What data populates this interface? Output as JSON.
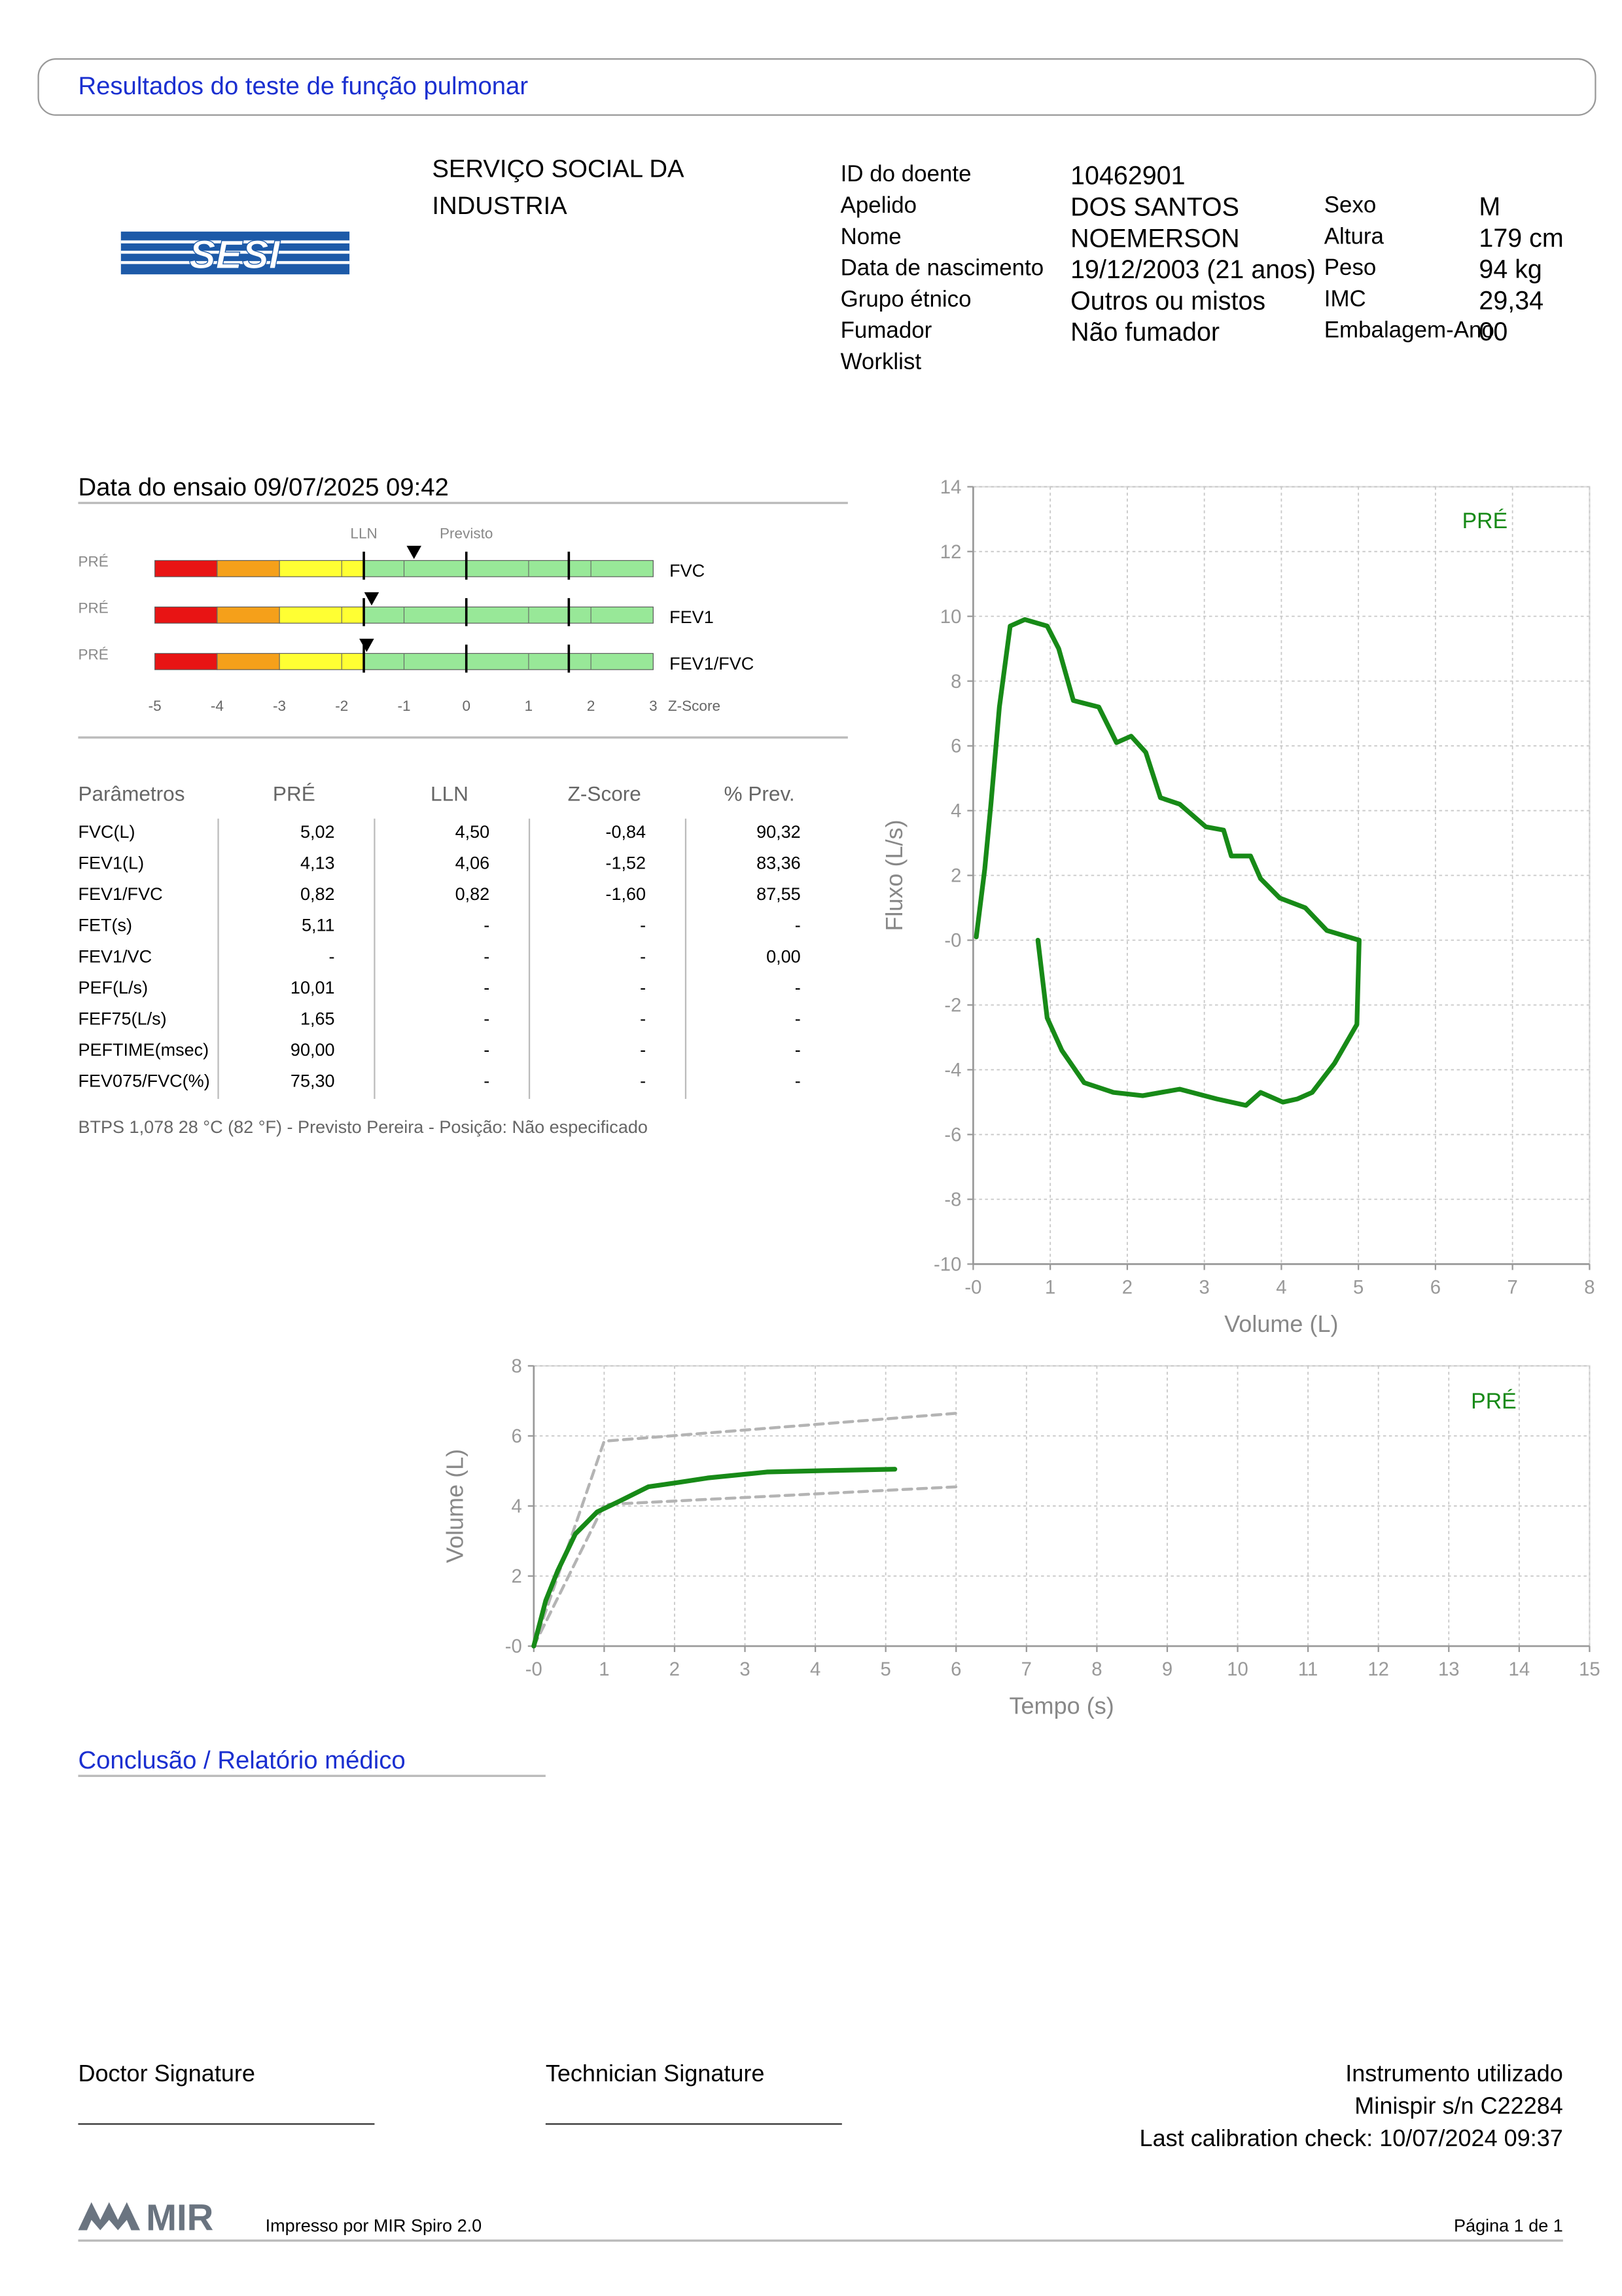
{
  "header": {
    "title": "Resultados do teste de função pulmonar"
  },
  "logo": {
    "text": "SESI"
  },
  "organization": {
    "lines": [
      "SERVIÇO SOCIAL DA",
      "INDUSTRIA"
    ]
  },
  "patient": {
    "left": [
      {
        "label": "ID do doente",
        "value": "10462901"
      },
      {
        "label": "Apelido",
        "value": "DOS SANTOS"
      },
      {
        "label": "Nome",
        "value": "NOEMERSON"
      },
      {
        "label": "Data de nascimento",
        "value": "19/12/2003 (21 anos)"
      },
      {
        "label": "Grupo étnico",
        "value": "Outros ou mistos"
      },
      {
        "label": "Fumador",
        "value": "Não fumador"
      },
      {
        "label": "Worklist"
      }
    ],
    "right": [
      {
        "label": "Sexo",
        "value": "M"
      },
      {
        "label": "Altura",
        "value": "179 cm"
      },
      {
        "label": "Peso",
        "value": "94 kg"
      },
      {
        "label": "IMC",
        "value": "29,34"
      },
      {
        "label": "Embalagem-Ano",
        "value": "00"
      }
    ]
  },
  "test_date": "Data do ensaio 09/07/2025 09:42",
  "zscore_chart": {
    "reference_lines": [
      {
        "value": -1.645,
        "label": "LLN"
      },
      {
        "value": 0,
        "label": "Previsto"
      },
      {
        "value": 1.645
      }
    ],
    "zones": [
      {
        "from": -5,
        "to": -4,
        "color": "#e81414"
      },
      {
        "from": -4,
        "to": -3,
        "color": "#f5a01a"
      },
      {
        "from": -3,
        "to": -1.645,
        "color": "#ffff33"
      },
      {
        "from": -1.645,
        "to": 3,
        "color": "#98e898"
      }
    ],
    "rows": [
      {
        "phase": "PRÉ",
        "name": "FVC",
        "value": -0.84
      },
      {
        "phase": "PRÉ",
        "name": "FEV1",
        "value": -1.52
      },
      {
        "phase": "PRÉ",
        "name": "FEV1/FVC",
        "value": -1.6
      }
    ],
    "xlim": [
      -5,
      3
    ],
    "xticks": [
      -5,
      -4,
      -3,
      -2,
      -1,
      0,
      1,
      2,
      3
    ],
    "axis_label": "Z-Score"
  },
  "table": {
    "columns": [
      "Parâmetros",
      "PRÉ",
      "LLN",
      "Z-Score",
      "% Prev."
    ],
    "rows": [
      [
        "FVC(L)",
        "5,02",
        "4,50",
        "-0,84",
        "90,32"
      ],
      [
        "FEV1(L)",
        "4,13",
        "4,06",
        "-1,52",
        "83,36"
      ],
      [
        "FEV1/FVC",
        "0,82",
        "0,82",
        "-1,60",
        "87,55"
      ],
      [
        "FET(s)",
        "5,11",
        "-",
        "-",
        "-"
      ],
      [
        "FEV1/VC",
        "-",
        "-",
        "-",
        "0,00"
      ],
      [
        "PEF(L/s)",
        "10,01",
        "-",
        "-",
        "-"
      ],
      [
        "FEF75(L/s)",
        "1,65",
        "-",
        "-",
        "-"
      ],
      [
        "PEFTIME(msec)",
        "90,00",
        "-",
        "-",
        "-"
      ],
      [
        "FEV075/FVC(%)",
        "75,30",
        "-",
        "-",
        "-"
      ]
    ],
    "note": "BTPS 1,078 28 °C (82 °F) - Previsto Pereira - Posição: Não especificado"
  },
  "chart_data": [
    {
      "type": "line",
      "xlabel": "Volume (L)",
      "ylabel": "Fluxo (L/s)",
      "xlim": [
        0,
        8
      ],
      "ylim": [
        -10,
        14
      ],
      "xticks": [
        {
          "value": 0,
          "label": "-0"
        },
        1,
        2,
        3,
        4,
        5,
        6,
        7,
        8
      ],
      "yticks": [
        -10,
        -8,
        -6,
        -4,
        -2,
        {
          "value": 0,
          "label": "-0"
        },
        2,
        4,
        6,
        8,
        10,
        12,
        14
      ],
      "grid": true,
      "series": [
        {
          "name": "PRÉ",
          "color": "#178a17",
          "x": [
            0.04,
            0.15,
            0.23,
            0.34,
            0.48,
            0.67,
            0.96,
            1.11,
            1.3,
            1.63,
            1.86,
            2.05,
            2.24,
            2.43,
            2.68,
            3.02,
            3.25,
            3.35,
            3.6,
            3.73,
            3.98,
            4.31,
            4.59,
            5.01,
            4.98,
            4.69,
            4.4,
            4.21,
            4.02,
            3.73,
            3.54,
            3.16,
            2.68,
            2.2,
            1.82,
            1.44,
            1.15,
            0.96,
            0.84
          ],
          "values": [
            0.1,
            2.2,
            4.2,
            7.2,
            9.7,
            9.9,
            9.7,
            9.0,
            7.4,
            7.2,
            6.1,
            6.3,
            5.8,
            4.4,
            4.2,
            3.5,
            3.4,
            2.6,
            2.6,
            1.9,
            1.3,
            1.0,
            0.3,
            0.0,
            -2.6,
            -3.8,
            -4.7,
            -4.9,
            -5.0,
            -4.7,
            -5.1,
            -4.9,
            -4.6,
            -4.8,
            -4.7,
            -4.4,
            -3.4,
            -2.4,
            0.0
          ]
        }
      ]
    },
    {
      "type": "line",
      "xlabel": "Tempo (s)",
      "ylabel": "Volume (L)",
      "xlim": [
        0,
        15
      ],
      "ylim": [
        0,
        8
      ],
      "xticks": [
        {
          "value": 0,
          "label": "-0"
        },
        1,
        2,
        3,
        4,
        5,
        6,
        7,
        8,
        9,
        10,
        11,
        12,
        13,
        14,
        15
      ],
      "yticks": [
        {
          "value": 0,
          "label": "-0"
        },
        2,
        4,
        6,
        8
      ],
      "grid": true,
      "series": [
        {
          "color": "#b4b4b4",
          "dashed": true,
          "x": [
            0,
            1.0,
            6.03
          ],
          "values": [
            0,
            5.85,
            6.65
          ]
        },
        {
          "color": "#b4b4b4",
          "dashed": true,
          "x": [
            0,
            1.0,
            6.03
          ],
          "values": [
            0,
            4.04,
            4.55
          ]
        },
        {
          "name": "PRÉ",
          "color": "#178a17",
          "x": [
            0,
            0.17,
            0.34,
            0.59,
            0.9,
            1.21,
            1.63,
            2.05,
            2.47,
            3.31,
            4.15,
            5.13
          ],
          "values": [
            0,
            1.3,
            2.15,
            3.2,
            3.83,
            4.13,
            4.55,
            4.67,
            4.8,
            4.97,
            5.01,
            5.05
          ]
        }
      ]
    }
  ],
  "conclusion": {
    "title": "Conclusão / Relatório médico"
  },
  "signatures": {
    "doctor": "Doctor Signature",
    "technician": "Technician Signature"
  },
  "instrument": {
    "lines": [
      "Instrumento utilizado",
      "Minispir s/n C22284",
      "Last calibration check: 10/07/2024 09:37"
    ]
  },
  "footer": {
    "logo": "MIR",
    "printed_by": "Impresso por MIR Spiro 2.0",
    "page": "Página 1 de 1"
  }
}
